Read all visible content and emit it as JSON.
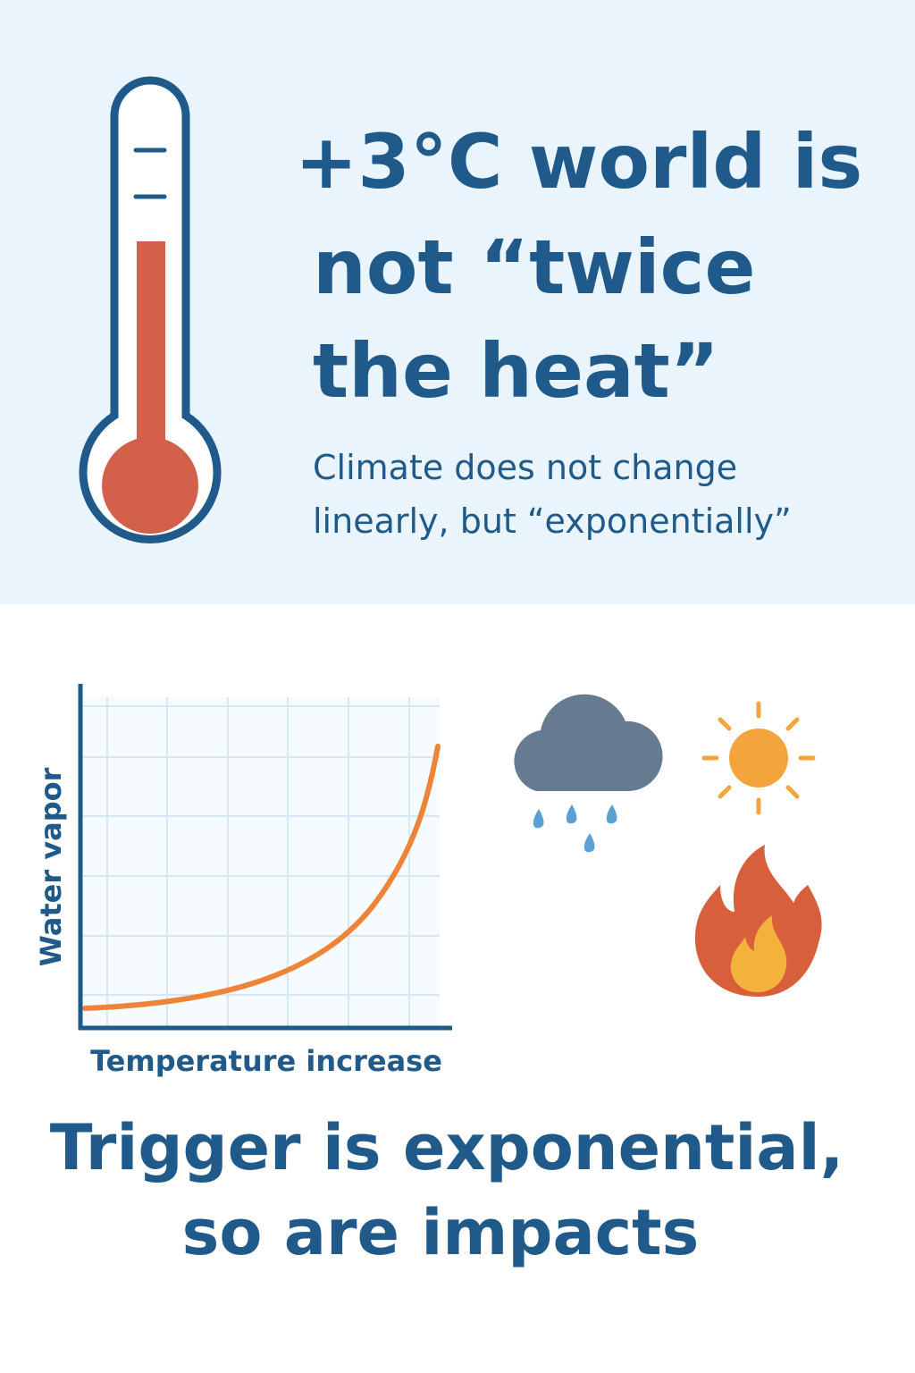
{
  "header": {
    "title": [
      "+3°C world is",
      "not “twice",
      "the heat”"
    ],
    "subtitle": [
      "Climate does not change",
      "linearly, but “exponentially”"
    ]
  },
  "chart": {
    "y_label": "Water vapor",
    "x_label": "Temperature increase"
  },
  "footer": {
    "title": [
      "Trigger is exponential,",
      "so are impacts"
    ]
  }
}
